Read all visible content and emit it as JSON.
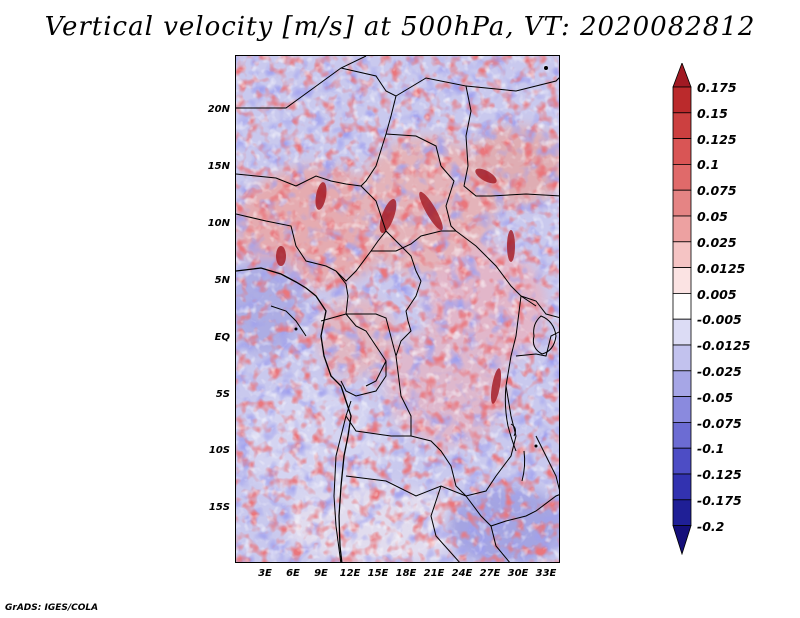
{
  "title": "Vertical velocity [m/s] at 500hPa, VT: 2020082812",
  "footer": "GrADS: IGES/COLA",
  "lat_labels": [
    "20N",
    "15N",
    "10N",
    "5N",
    "EQ",
    "5S",
    "10S",
    "15S"
  ],
  "lon_labels": [
    "3E",
    "6E",
    "9E",
    "12E",
    "15E",
    "18E",
    "21E",
    "24E",
    "27E",
    "30E",
    "33E"
  ],
  "colorbar": {
    "labels": [
      "0.175",
      "0.15",
      "0.125",
      "0.1",
      "0.075",
      "0.05",
      "0.025",
      "0.0125",
      "0.005",
      "-0.005",
      "-0.0125",
      "-0.025",
      "-0.05",
      "-0.075",
      "-0.1",
      "-0.125",
      "-0.175",
      "-0.2"
    ],
    "colors": [
      "#a11a23",
      "#bb2a2c",
      "#cc4040",
      "#d95555",
      "#e06a6a",
      "#e58484",
      "#eda1a1",
      "#f5c4c4",
      "#fbe3e3",
      "#ffffff",
      "#dcdcf5",
      "#c2c2ee",
      "#a6a6e6",
      "#8a8ade",
      "#6c6cd3",
      "#4d4dc5",
      "#3232b0",
      "#1f1f96",
      "#150f7a"
    ]
  }
}
